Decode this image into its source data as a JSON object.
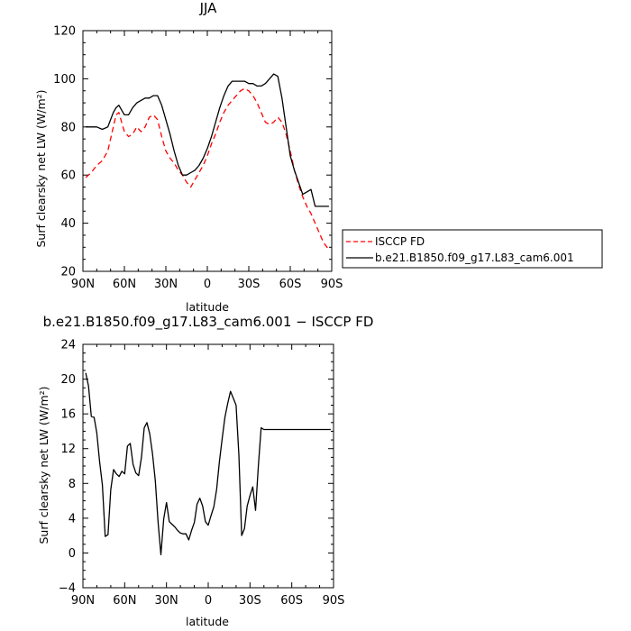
{
  "chart_data": [
    {
      "type": "line",
      "title": "JJA",
      "xlabel": "latitude",
      "ylabel": "Surf clearsky net LW (W/m²)",
      "xlim": [
        -90,
        90
      ],
      "ylim": [
        20,
        120
      ],
      "xticks": [
        -90,
        -60,
        -30,
        0,
        30,
        60,
        90
      ],
      "xtick_labels": [
        "90N",
        "60N",
        "30N",
        "0",
        "30S",
        "60S",
        "90S"
      ],
      "yticks": [
        20,
        40,
        60,
        80,
        100,
        120
      ],
      "ytick_labels": [
        "20",
        "40",
        "60",
        "80",
        "100",
        "120"
      ],
      "grid": false,
      "legend_position": "right",
      "legend": [
        {
          "label": "ISCCP FD",
          "color": "#ff0000",
          "dash": "dashed"
        },
        {
          "label": "b.e21.B1850.f09_g17.L83_cam6.001",
          "color": "#000000",
          "dash": "solid"
        }
      ],
      "series": [
        {
          "name": "ISCCP FD",
          "color": "#ff0000",
          "dash": "dashed",
          "x": [
            -88,
            -84,
            -80,
            -76,
            -72,
            -68,
            -66,
            -64,
            -62,
            -60,
            -57,
            -54,
            -51,
            -48,
            -45,
            -42,
            -39,
            -36,
            -33,
            -30,
            -27,
            -24,
            -21,
            -18,
            -15,
            -12,
            -9,
            -6,
            -3,
            0,
            3,
            6,
            9,
            12,
            15,
            18,
            21,
            24,
            27,
            30,
            33,
            36,
            39,
            42,
            45,
            48,
            51,
            54,
            57,
            60,
            63,
            66,
            69,
            72,
            75,
            78,
            81,
            84,
            88
          ],
          "y": [
            59,
            61,
            64,
            66,
            70,
            80,
            85,
            86,
            82,
            78,
            76,
            77,
            80,
            78,
            80,
            84,
            85,
            83,
            76,
            70,
            67,
            65,
            62,
            60,
            57,
            55,
            58,
            61,
            64,
            68,
            73,
            77,
            82,
            86,
            89,
            91,
            93,
            95,
            96,
            95,
            93,
            90,
            86,
            82,
            81,
            82,
            84,
            82,
            77,
            70,
            62,
            56,
            51,
            47,
            44,
            40,
            36,
            32,
            29
          ]
        },
        {
          "name": "b.e21.B1850.f09_g17.L83_cam6.001",
          "color": "#000000",
          "dash": "solid",
          "x": [
            -88,
            -84,
            -80,
            -76,
            -72,
            -68,
            -66,
            -64,
            -62,
            -60,
            -57,
            -54,
            -51,
            -48,
            -45,
            -42,
            -39,
            -36,
            -33,
            -30,
            -27,
            -24,
            -21,
            -18,
            -15,
            -12,
            -9,
            -6,
            -3,
            0,
            3,
            6,
            9,
            12,
            15,
            18,
            21,
            24,
            27,
            30,
            33,
            36,
            39,
            42,
            45,
            48,
            51,
            54,
            57,
            60,
            63,
            66,
            69,
            72,
            75,
            78,
            81,
            84,
            88
          ],
          "y": [
            80,
            80,
            80,
            79,
            80,
            86,
            88,
            89,
            87,
            85,
            85,
            88,
            90,
            91,
            92,
            92,
            93,
            93,
            89,
            83,
            77,
            70,
            64,
            60,
            60,
            61,
            62,
            64,
            67,
            71,
            76,
            82,
            88,
            93,
            97,
            99,
            99,
            99,
            99,
            98,
            98,
            97,
            97,
            98,
            100,
            102,
            101,
            92,
            80,
            68,
            62,
            57,
            52,
            53,
            54,
            47,
            47,
            47,
            47
          ]
        }
      ]
    },
    {
      "type": "line",
      "title": "b.e21.B1850.f09_g17.L83_cam6.001 − ISCCP FD",
      "xlabel": "latitude",
      "ylabel": "Surf clearsky net LW (W/m²)",
      "xlim": [
        -90,
        90
      ],
      "ylim": [
        -4,
        24
      ],
      "xticks": [
        -90,
        -60,
        -30,
        0,
        30,
        60,
        90
      ],
      "xtick_labels": [
        "90N",
        "60N",
        "30N",
        "0",
        "30S",
        "60S",
        "90S"
      ],
      "yticks": [
        -4,
        0,
        4,
        8,
        12,
        16,
        20,
        24
      ],
      "ytick_labels": [
        "−4",
        "0",
        "4",
        "8",
        "12",
        "16",
        "20",
        "24"
      ],
      "grid": false,
      "series": [
        {
          "color": "#000000",
          "dash": "solid",
          "x": [
            -88,
            -86,
            -84,
            -82,
            -80,
            -78,
            -76,
            -74,
            -72,
            -70,
            -68,
            -66,
            -64,
            -62,
            -60,
            -58,
            -56,
            -54,
            -52,
            -50,
            -48,
            -46,
            -44,
            -42,
            -40,
            -38,
            -36,
            -34,
            -32,
            -30,
            -28,
            -26,
            -24,
            -22,
            -20,
            -18,
            -16,
            -14,
            -12,
            -10,
            -8,
            -6,
            -4,
            -2,
            0,
            2,
            4,
            6,
            8,
            10,
            12,
            14,
            16,
            18,
            20,
            22,
            24,
            26,
            28,
            30,
            32,
            34,
            36,
            38,
            40,
            42,
            44,
            46,
            48,
            50,
            52,
            54,
            56,
            58,
            60,
            62,
            64,
            66,
            68,
            70,
            72,
            74,
            76,
            78,
            80,
            82,
            84,
            86,
            88
          ],
          "y": [
            20.7,
            19.2,
            15.7,
            15.6,
            13.8,
            10.5,
            7.8,
            1.9,
            2.1,
            7.3,
            9.6,
            9.1,
            8.8,
            9.4,
            9.1,
            12.3,
            12.6,
            10.2,
            9.2,
            8.9,
            11.0,
            14.4,
            15.0,
            13.7,
            11.4,
            8.3,
            3.5,
            -0.2,
            3.9,
            5.8,
            3.6,
            3.3,
            3.0,
            2.6,
            2.3,
            2.2,
            2.2,
            1.5,
            2.6,
            3.5,
            5.6,
            6.3,
            5.4,
            3.6,
            3.2,
            4.3,
            5.3,
            7.3,
            10.5,
            13.1,
            15.6,
            17.2,
            18.6,
            17.8,
            17.0,
            11.3,
            2.0,
            2.8,
            5.4,
            6.6,
            7.6,
            4.9,
            10.0,
            14.4,
            14.2,
            14.2,
            14.2,
            14.2,
            14.2,
            14.2,
            14.2,
            14.2,
            14.2,
            14.2,
            14.2,
            14.2,
            14.2,
            14.2,
            14.2,
            14.2,
            14.2,
            14.2,
            14.2,
            14.2,
            14.2,
            14.2,
            14.2,
            14.2,
            14.2
          ]
        }
      ]
    }
  ]
}
